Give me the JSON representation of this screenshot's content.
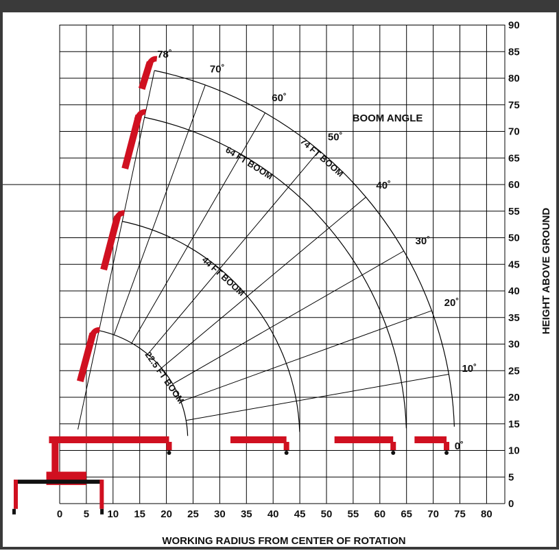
{
  "chart_data": {
    "type": "range-diagram",
    "title": "",
    "xlabel": "WORKING RADIUS FROM CENTER OF ROTATION",
    "ylabel": "HEIGHT ABOVE GROUND",
    "xlim": [
      0,
      85
    ],
    "ylim": [
      0,
      90
    ],
    "x_ticks": [
      0,
      5,
      10,
      15,
      20,
      25,
      30,
      35,
      40,
      45,
      50,
      55,
      60,
      65,
      70,
      75,
      80
    ],
    "y_ticks": [
      0,
      5,
      10,
      15,
      20,
      25,
      30,
      35,
      40,
      45,
      50,
      55,
      60,
      65,
      70,
      75,
      80,
      85,
      90
    ],
    "grid": true,
    "pivot": {
      "x": 3,
      "y": 12
    },
    "booms": [
      {
        "name": "22.5 FT BOOM",
        "tip_x": 20.5,
        "tip_y": 12,
        "reach": 21,
        "label_angle": 35
      },
      {
        "name": "44 FT BOOM",
        "tip_x": 42.5,
        "tip_y": 12,
        "reach": 42,
        "label_angle": 48
      },
      {
        "name": "64 FT BOOM",
        "tip_x": 62.5,
        "tip_y": 12,
        "reach": 62,
        "label_angle": 58
      },
      {
        "name": "74 FT BOOM",
        "tip_x": 72.5,
        "tip_y": 12,
        "reach": 71,
        "label_angle": 49
      }
    ],
    "angle_lines": {
      "title": "BOOM ANGLE",
      "angles": [
        0,
        10,
        20,
        30,
        40,
        50,
        60,
        70,
        78
      ],
      "labels": [
        "0˚",
        "10˚",
        "20˚",
        "30˚",
        "40˚",
        "50˚",
        "60˚",
        "70˚",
        "78˚"
      ]
    },
    "colors": {
      "boom": "#d01020",
      "grid": "#000000",
      "frame": "#2a2a2a",
      "background": "#ffffff"
    }
  }
}
